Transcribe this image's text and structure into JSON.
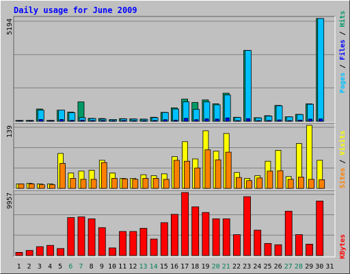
{
  "chart_data": [
    {
      "type": "bar",
      "title": "Daily usage for June 2009",
      "panel": "top",
      "ymax_label": "5194",
      "ylim": [
        0,
        5194
      ],
      "categories": [
        "1",
        "2",
        "3",
        "4",
        "5",
        "6",
        "7",
        "8",
        "9",
        "10",
        "11",
        "12",
        "13",
        "14",
        "15",
        "16",
        "17",
        "18",
        "19",
        "20",
        "21",
        "22",
        "23",
        "24",
        "25",
        "26",
        "27",
        "28",
        "29",
        "30",
        "31"
      ],
      "series": [
        {
          "name": "Hits",
          "values": [
            40,
            40,
            620,
            40,
            560,
            460,
            980,
            150,
            140,
            80,
            130,
            120,
            110,
            200,
            450,
            680,
            1120,
            950,
            1080,
            880,
            1420,
            200,
            3580,
            180,
            280,
            800,
            230,
            350,
            880,
            5194,
            0
          ]
        },
        {
          "name": "Files",
          "values": [
            40,
            40,
            560,
            40,
            560,
            430,
            180,
            140,
            110,
            90,
            120,
            110,
            100,
            180,
            440,
            620,
            980,
            600,
            980,
            830,
            1330,
            190,
            3580,
            170,
            260,
            780,
            220,
            340,
            860,
            5194,
            0
          ]
        },
        {
          "name": "Pages",
          "values": [
            20,
            30,
            90,
            20,
            90,
            50,
            60,
            40,
            40,
            30,
            40,
            30,
            30,
            40,
            80,
            60,
            150,
            80,
            120,
            110,
            170,
            30,
            130,
            30,
            40,
            70,
            30,
            60,
            110,
            120,
            0
          ]
        }
      ]
    },
    {
      "type": "bar",
      "panel": "middle",
      "ymax_label": "139",
      "ylim": [
        0,
        139
      ],
      "categories": [
        "1",
        "2",
        "3",
        "4",
        "5",
        "6",
        "7",
        "8",
        "9",
        "10",
        "11",
        "12",
        "13",
        "14",
        "15",
        "16",
        "17",
        "18",
        "19",
        "20",
        "21",
        "22",
        "23",
        "24",
        "25",
        "26",
        "27",
        "28",
        "29",
        "30",
        "31"
      ],
      "series": [
        {
          "name": "Visits",
          "values": [
            10,
            11,
            10,
            10,
            77,
            34,
            38,
            40,
            62,
            34,
            22,
            22,
            30,
            28,
            32,
            70,
            103,
            65,
            127,
            82,
            121,
            35,
            22,
            28,
            60,
            84,
            26,
            99,
            139,
            62,
            0
          ]
        },
        {
          "name": "Sites",
          "values": [
            10,
            10,
            8,
            8,
            55,
            22,
            20,
            20,
            57,
            22,
            21,
            20,
            22,
            22,
            20,
            62,
            60,
            45,
            85,
            63,
            80,
            24,
            17,
            23,
            38,
            39,
            20,
            25,
            20,
            19,
            0
          ]
        }
      ]
    },
    {
      "type": "bar",
      "panel": "bottom",
      "ymax_label": "9957",
      "ylim": [
        0,
        9957
      ],
      "categories": [
        "1",
        "2",
        "3",
        "4",
        "5",
        "6",
        "7",
        "8",
        "9",
        "10",
        "11",
        "12",
        "13",
        "14",
        "15",
        "16",
        "17",
        "18",
        "19",
        "20",
        "21",
        "22",
        "23",
        "24",
        "25",
        "26",
        "27",
        "28",
        "29",
        "30",
        "31"
      ],
      "series": [
        {
          "name": "KBytes",
          "values": [
            500,
            800,
            1400,
            1600,
            1100,
            6000,
            6100,
            5800,
            4400,
            1200,
            3800,
            3800,
            4300,
            2600,
            5200,
            6500,
            9957,
            7700,
            6800,
            5800,
            5800,
            3300,
            9300,
            4000,
            1900,
            1700,
            7000,
            3300,
            1800,
            8600,
            0
          ]
        }
      ]
    }
  ],
  "colors": {
    "background": "#c0c0c0",
    "gridline": "#808080",
    "title": "#0000ff",
    "hits": "#009966",
    "files": "#0000ff",
    "pages": "#00c0ff",
    "visits": "#ffff00",
    "sites": "#ff8000",
    "kbytes": "#ff0000",
    "weekend_label": "#00805c"
  },
  "legend_top": [
    {
      "text": "Pages",
      "color": "#00c0ff"
    },
    {
      "text": " / ",
      "color": "#000000"
    },
    {
      "text": "Files",
      "color": "#0000ff"
    },
    {
      "text": " / ",
      "color": "#000000"
    },
    {
      "text": "Hits",
      "color": "#009966"
    }
  ],
  "legend_middle": [
    {
      "text": "Sites",
      "color": "#ff8000"
    },
    {
      "text": " / ",
      "color": "#000000"
    },
    {
      "text": "Visits",
      "color": "#ffff00"
    }
  ],
  "legend_bottom": [
    {
      "text": "KBytes",
      "color": "#ff0000"
    }
  ],
  "weekend_days": [
    "6",
    "7",
    "13",
    "14",
    "20",
    "21",
    "27",
    "28"
  ]
}
